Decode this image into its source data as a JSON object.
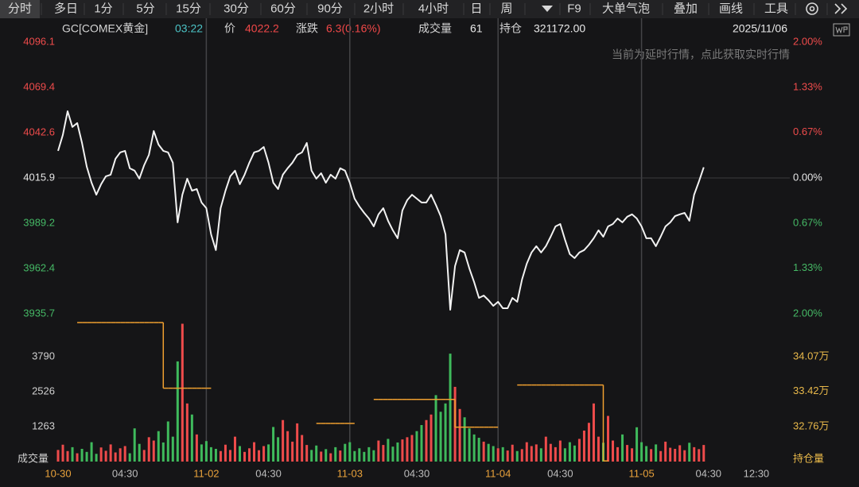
{
  "toolbar": {
    "items": [
      "分时",
      "多日",
      "1分",
      "5分",
      "15分",
      "30分",
      "60分",
      "90分",
      "2小时",
      "4小时",
      "日",
      "周",
      "F9",
      "大单气泡",
      "叠加",
      "画线",
      "工具"
    ]
  },
  "quote": {
    "symbol": "GC[COMEX黄金]",
    "time": "03:22",
    "price_label": "价",
    "price": "4022.2",
    "change_label": "涨跌",
    "change": "6.3(0.16%)",
    "volume_label": "成交量",
    "volume": "61",
    "oi_label": "持仓",
    "oi": "321172.00",
    "date": "2025/11/06"
  },
  "notice": "当前为延时行情，点此获取实时行情",
  "chart_data": [
    {
      "type": "line",
      "color": "#f2f2f2",
      "values": [
        4031.9,
        4041.3,
        4055.3,
        4046.0,
        4048.3,
        4036.6,
        4022.5,
        4013.1,
        4006.0,
        4012.2,
        4016.9,
        4017.8,
        4027.2,
        4031.0,
        4031.9,
        4021.6,
        4020.2,
        4015.5,
        4023.4,
        4029.5,
        4043.6,
        4035.6,
        4031.9,
        4031.0,
        4024.9,
        3989.7,
        4006.0,
        4015.5,
        4008.4,
        4009.4,
        4001.4,
        3998.1,
        3982.6,
        3973.3,
        3998.1,
        4008.4,
        4016.9,
        4020.2,
        4012.2,
        4017.8,
        4024.9,
        4031.0,
        4031.9,
        4034.2,
        4024.9,
        4013.1,
        4009.4,
        4017.8,
        4021.6,
        4024.9,
        4029.5,
        4031.0,
        4036.6,
        4020.2,
        4015.5,
        4018.7,
        4013.1,
        4017.8,
        4015.5,
        4021.6,
        4020.2,
        4013.1,
        4003.7,
        3999.1,
        3995.3,
        3992.0,
        3987.3,
        3994.4,
        3998.1,
        3990.6,
        3985.0,
        3980.3,
        3996.7,
        4002.8,
        4006.0,
        4003.7,
        4001.4,
        4001.4,
        4006.0,
        4000.0,
        3993.4,
        3982.6,
        3938.1,
        3963.9,
        3973.3,
        3971.9,
        3962.5,
        3954.4,
        3945.1,
        3946.5,
        3943.7,
        3940.4,
        3942.8,
        3939.0,
        3939.0,
        3945.1,
        3942.8,
        3955.9,
        3965.3,
        3971.9,
        3975.6,
        3971.9,
        3975.6,
        3981.2,
        3987.3,
        3988.7,
        3979.4,
        3970.9,
        3968.6,
        3971.9,
        3973.3,
        3976.5,
        3980.3,
        3985.0,
        3981.2,
        3987.3,
        3988.7,
        3992.0,
        3989.7,
        3993.0,
        3994.4,
        3992.0,
        3987.3,
        3980.3,
        3980.3,
        3975.6,
        3981.2,
        3987.3,
        3989.7,
        3993.4,
        3994.4,
        3995.3,
        3990.6,
        4006.0,
        4013.9,
        4022.2
      ],
      "xlim": [
        0,
        153
      ],
      "xticks": [
        {
          "value": 0,
          "label": "10-30"
        },
        {
          "value": 14,
          "label": "04:30"
        },
        {
          "value": 31,
          "label": "11-02"
        },
        {
          "value": 44,
          "label": "04:30"
        },
        {
          "value": 61,
          "label": "11-03"
        },
        {
          "value": 75,
          "label": "04:30"
        },
        {
          "value": 92,
          "label": "11-04"
        },
        {
          "value": 105,
          "label": "04:30"
        },
        {
          "value": 122,
          "label": "11-05"
        },
        {
          "value": 136,
          "label": "04:30"
        },
        {
          "value": 146,
          "label": "12:30"
        }
      ],
      "ylim": [
        3935.7,
        4096.1
      ],
      "yticks": [
        4096.1,
        4069.4,
        4042.6,
        4015.9,
        3989.2,
        3962.4,
        3935.7
      ],
      "y2lim": [
        -2,
        2
      ],
      "y2ticks": [
        {
          "value": 2,
          "label": "2.00%"
        },
        {
          "value": 1.33,
          "label": "1.33%"
        },
        {
          "value": 0.67,
          "label": "0.67%"
        },
        {
          "value": 0,
          "label": "0.00%"
        },
        {
          "value": -0.67,
          "label": "0.67%"
        },
        {
          "value": -1.33,
          "label": "1.33%"
        },
        {
          "value": -2,
          "label": "2.00%"
        }
      ],
      "up_color": "#ee4b4b",
      "down_color": "#45b865",
      "flat_color": "#e6e6e6"
    },
    {
      "type": "bar",
      "series": [
        {
          "name": "成交量",
          "up_color": "#ee4b4b",
          "down_color": "#3fba5c",
          "values": [
            420,
            610,
            380,
            520,
            300,
            460,
            350,
            700,
            280,
            510,
            390,
            620,
            330,
            480,
            560,
            300,
            1200,
            640,
            420,
            880,
            760,
            1100,
            690,
            1450,
            900,
            3620,
            4980,
            2100,
            1700,
            980,
            620,
            740,
            520,
            460,
            380,
            610,
            420,
            900,
            560,
            350,
            480,
            700,
            410,
            560,
            620,
            1250,
            880,
            1500,
            1100,
            720,
            1380,
            960,
            600,
            420,
            580,
            360,
            450,
            300,
            520,
            400,
            640,
            700,
            380,
            480,
            350,
            520,
            410,
            760,
            600,
            820,
            540,
            690,
            800,
            880,
            960,
            1100,
            1320,
            1500,
            1700,
            2400,
            1800,
            2100,
            3900,
            2700,
            1900,
            1600,
            1200,
            980,
            860,
            720,
            640,
            560,
            480,
            520,
            400,
            610,
            380,
            450,
            700,
            560,
            620,
            480,
            900,
            640,
            520,
            760,
            480,
            700,
            580,
            820,
            1120,
            1400,
            2100,
            900,
            680,
            1650,
            760,
            520,
            980,
            600,
            480,
            1240,
            700,
            560,
            450,
            620,
            380,
            720,
            500,
            460,
            590,
            410,
            680,
            520,
            450,
            600
          ]
        },
        {
          "name": "持仓量",
          "axis": "y2",
          "color": "#f0a030",
          "values": [
            null,
            null,
            null,
            null,
            347100,
            347100,
            347100,
            347100,
            347100,
            347100,
            347100,
            347100,
            347100,
            347100,
            347100,
            347100,
            347100,
            347100,
            347100,
            347100,
            347100,
            347100,
            334800,
            334800,
            334800,
            334800,
            334800,
            334800,
            334800,
            334800,
            334800,
            334800,
            null,
            null,
            null,
            null,
            null,
            null,
            null,
            null,
            null,
            null,
            null,
            null,
            null,
            null,
            null,
            null,
            null,
            null,
            null,
            null,
            null,
            null,
            328200,
            328200,
            328200,
            328200,
            328200,
            328200,
            328200,
            328200,
            null,
            null,
            null,
            null,
            332700,
            332700,
            332700,
            332700,
            332700,
            332700,
            332700,
            332700,
            332700,
            332700,
            332700,
            332700,
            332700,
            332700,
            332700,
            332700,
            332700,
            327500,
            327500,
            327500,
            327500,
            327500,
            327500,
            327500,
            327500,
            327500,
            null,
            null,
            null,
            null,
            335400,
            335400,
            335400,
            335400,
            335400,
            335400,
            335400,
            335400,
            335400,
            335400,
            335400,
            335400,
            335400,
            335400,
            335400,
            335400,
            335400,
            335400,
            321172,
            null,
            null,
            null,
            null,
            null,
            null,
            null,
            null,
            null,
            null,
            null,
            null,
            null,
            null,
            null,
            null,
            null,
            null,
            null,
            null,
            null
          ]
        }
      ],
      "ylim": [
        0,
        5052
      ],
      "yticks": [
        1263,
        2526,
        3790
      ],
      "y2lim": [
        321050,
        347250
      ],
      "y2ticks": [
        {
          "value": 340700,
          "label": "34.07万"
        },
        {
          "value": 334200,
          "label": "33.42万"
        },
        {
          "value": 327600,
          "label": "32.76万"
        }
      ]
    }
  ]
}
